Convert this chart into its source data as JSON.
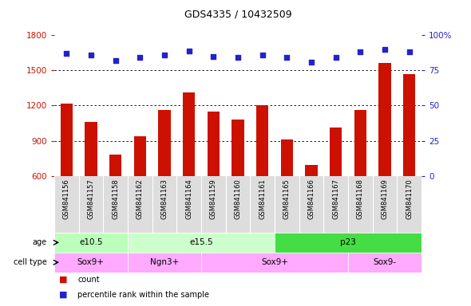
{
  "title": "GDS4335 / 10432509",
  "samples": [
    "GSM841156",
    "GSM841157",
    "GSM841158",
    "GSM841162",
    "GSM841163",
    "GSM841164",
    "GSM841159",
    "GSM841160",
    "GSM841161",
    "GSM841165",
    "GSM841166",
    "GSM841167",
    "GSM841168",
    "GSM841169",
    "GSM841170"
  ],
  "counts": [
    1220,
    1060,
    780,
    940,
    1165,
    1310,
    1150,
    1080,
    1200,
    910,
    695,
    1010,
    1165,
    1560,
    1470
  ],
  "percentiles": [
    87,
    86,
    82,
    84,
    86,
    89,
    85,
    84,
    86,
    84,
    81,
    84,
    88,
    90,
    88
  ],
  "ylim_left": [
    600,
    1800
  ],
  "ylim_right": [
    0,
    100
  ],
  "yticks_left": [
    600,
    900,
    1200,
    1500,
    1800
  ],
  "yticks_right": [
    0,
    25,
    50,
    75,
    100
  ],
  "bar_color": "#cc1100",
  "dot_color": "#2222cc",
  "age_groups": [
    {
      "label": "e10.5",
      "start": 0,
      "end": 3,
      "color": "#bbffbb"
    },
    {
      "label": "e15.5",
      "start": 3,
      "end": 9,
      "color": "#ccffcc"
    },
    {
      "label": "p23",
      "start": 9,
      "end": 15,
      "color": "#44dd44"
    }
  ],
  "cell_type_groups": [
    {
      "label": "Sox9+",
      "start": 0,
      "end": 3,
      "color": "#ffaaff"
    },
    {
      "label": "Ngn3+",
      "start": 3,
      "end": 6,
      "color": "#ffaaff"
    },
    {
      "label": "Sox9+",
      "start": 6,
      "end": 12,
      "color": "#ffaaff"
    },
    {
      "label": "Sox9-",
      "start": 12,
      "end": 15,
      "color": "#ffaaff"
    }
  ],
  "tick_color_left": "#cc1100",
  "tick_color_right": "#2222cc",
  "legend_count_color": "#cc1100",
  "legend_dot_color": "#2222cc",
  "bg_color": "#ffffff",
  "label_area_color": "#dddddd"
}
